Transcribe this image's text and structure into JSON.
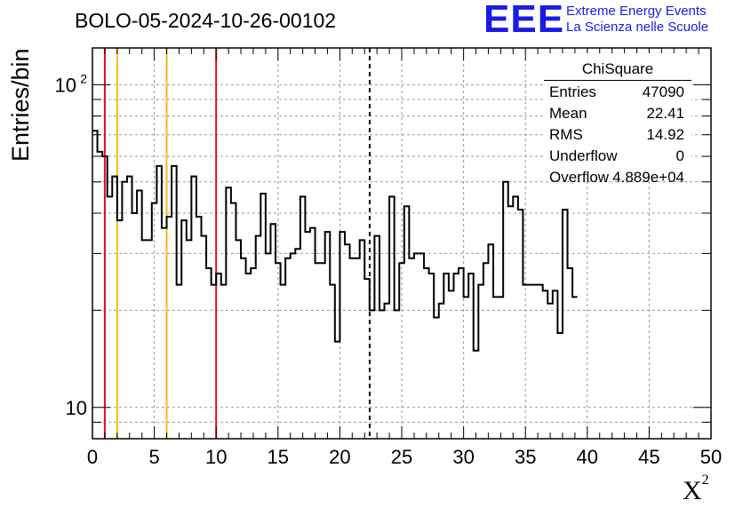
{
  "title": "BOLO-05-2024-10-26-00102",
  "logo": {
    "mark": "EEE",
    "line1": "Extreme Energy Events",
    "line2": "La Scienza nelle Scuole"
  },
  "stats_box": {
    "header": "ChiSquare",
    "rows": [
      {
        "label": "Entries",
        "value": "47090"
      },
      {
        "label": "Mean",
        "value": "22.41"
      },
      {
        "label": "RMS",
        "value": "14.92"
      },
      {
        "label": "Underflow",
        "value": "0"
      },
      {
        "label": "Overflow",
        "value": "4.889e+04"
      }
    ]
  },
  "colors": {
    "red_line": "#dd1111",
    "yellow_line": "#f5bb11",
    "histogram": "#000000",
    "grid": "#999999",
    "logo": "#1a1ae6"
  },
  "chart_data": {
    "type": "step histogram",
    "xlabel": "X",
    "xlabel_sup": "2",
    "ylabel": "Entries/bin",
    "xlim": [
      0,
      50
    ],
    "ylim": [
      8,
      130
    ],
    "yscale": "log",
    "xticks": [
      0,
      5,
      10,
      15,
      20,
      25,
      30,
      35,
      40,
      45,
      50
    ],
    "yticks": [
      {
        "value": 10,
        "label": "10"
      },
      {
        "value": 100,
        "label": "10",
        "sup": "2"
      }
    ],
    "grid": true,
    "bin_width": 0.4,
    "values": [
      72,
      62,
      60,
      45,
      52,
      38,
      50,
      52,
      40,
      47,
      33,
      33,
      43,
      56,
      36,
      39,
      56,
      24,
      38,
      33,
      52,
      39,
      34,
      27,
      24,
      26,
      24,
      48,
      43,
      33,
      29,
      26,
      27,
      34,
      46,
      30,
      37,
      28,
      24,
      29,
      30,
      31,
      45,
      35,
      36,
      28,
      28,
      35,
      24,
      16,
      35,
      32,
      29,
      29,
      33,
      25,
      20,
      34,
      20,
      21,
      45,
      20,
      28,
      42,
      29,
      30,
      30,
      27,
      26,
      19,
      21,
      26,
      23,
      26,
      27,
      22,
      26,
      15,
      24,
      28,
      32,
      22,
      22,
      50,
      42,
      45,
      41,
      24,
      24,
      24,
      24,
      23,
      21,
      23,
      17,
      41,
      27,
      22
    ],
    "vertical_lines": [
      {
        "x": 1,
        "color": "red"
      },
      {
        "x": 2,
        "color": "yellow"
      },
      {
        "x": 6,
        "color": "yellow"
      },
      {
        "x": 10,
        "color": "red"
      },
      {
        "x": 22.41,
        "color": "black",
        "style": "dashed"
      }
    ]
  }
}
